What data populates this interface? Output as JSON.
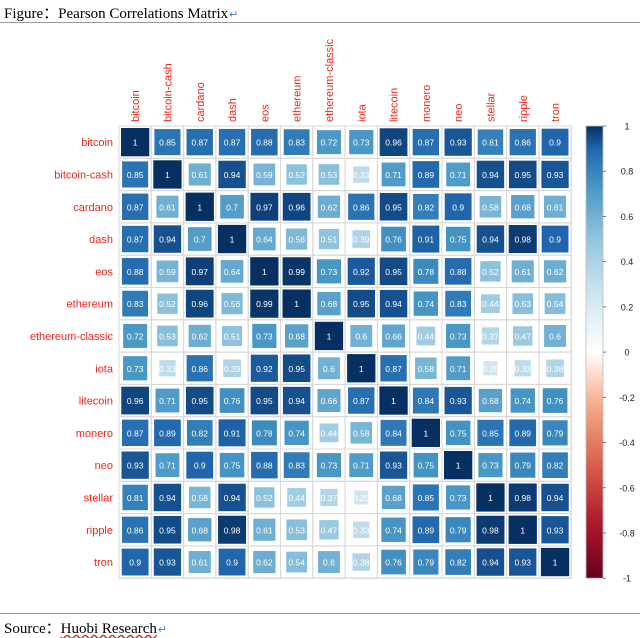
{
  "caption": {
    "figure_label": "Figure：",
    "figure_title": "Pearson Correlations Matrix",
    "source_label": "Source：",
    "source_text": "Huobi Research",
    "return_mark": "↵"
  },
  "colors": {
    "positive_strong": "#08306b",
    "neutral": "#ffffff",
    "negative_strong": "#67001f",
    "label_red": "#e8281d",
    "grid_line": "#d8d8d8"
  },
  "chart_data": {
    "type": "heatmap",
    "title": "",
    "variables": [
      "bitcoin",
      "bitcoin-cash",
      "cardano",
      "dash",
      "eos",
      "ethereum",
      "ethereum-classic",
      "iota",
      "litecoin",
      "monero",
      "neo",
      "stellar",
      "ripple",
      "tron"
    ],
    "matrix": [
      [
        1,
        0.85,
        0.87,
        0.87,
        0.88,
        0.83,
        0.72,
        0.73,
        0.96,
        0.87,
        0.93,
        0.81,
        0.86,
        0.9
      ],
      [
        0.85,
        1,
        0.61,
        0.94,
        0.59,
        0.52,
        0.53,
        0.33,
        0.71,
        0.89,
        0.71,
        0.94,
        0.95,
        0.93
      ],
      [
        0.87,
        0.61,
        1,
        0.7,
        0.97,
        0.96,
        0.62,
        0.86,
        0.95,
        0.82,
        0.9,
        0.58,
        0.68,
        0.61
      ],
      [
        0.87,
        0.94,
        0.7,
        1,
        0.64,
        0.56,
        0.51,
        0.39,
        0.76,
        0.91,
        0.75,
        0.94,
        0.98,
        0.9
      ],
      [
        0.88,
        0.59,
        0.97,
        0.64,
        1,
        0.99,
        0.73,
        0.92,
        0.95,
        0.78,
        0.88,
        0.52,
        0.61,
        0.62
      ],
      [
        0.83,
        0.52,
        0.96,
        0.56,
        0.99,
        1,
        0.68,
        0.95,
        0.94,
        0.74,
        0.83,
        0.44,
        0.53,
        0.54
      ],
      [
        0.72,
        0.53,
        0.62,
        0.51,
        0.73,
        0.68,
        1,
        0.6,
        0.66,
        0.44,
        0.73,
        0.37,
        0.47,
        0.6
      ],
      [
        0.73,
        0.33,
        0.86,
        0.39,
        0.92,
        0.95,
        0.6,
        1,
        0.87,
        0.58,
        0.71,
        0.25,
        0.33,
        0.38
      ],
      [
        0.96,
        0.71,
        0.95,
        0.76,
        0.95,
        0.94,
        0.66,
        0.87,
        1,
        0.84,
        0.93,
        0.68,
        0.74,
        0.76
      ],
      [
        0.87,
        0.89,
        0.82,
        0.91,
        0.78,
        0.74,
        0.44,
        0.58,
        0.84,
        1,
        0.75,
        0.85,
        0.89,
        0.79
      ],
      [
        0.93,
        0.71,
        0.9,
        0.75,
        0.88,
        0.83,
        0.73,
        0.71,
        0.93,
        0.75,
        1,
        0.73,
        0.79,
        0.82
      ],
      [
        0.81,
        0.94,
        0.58,
        0.94,
        0.52,
        0.44,
        0.37,
        0.25,
        0.68,
        0.85,
        0.73,
        1,
        0.98,
        0.94
      ],
      [
        0.86,
        0.95,
        0.68,
        0.98,
        0.61,
        0.53,
        0.47,
        0.33,
        0.74,
        0.89,
        0.79,
        0.98,
        1,
        0.93
      ],
      [
        0.9,
        0.93,
        0.61,
        0.9,
        0.62,
        0.54,
        0.6,
        0.38,
        0.76,
        0.79,
        0.82,
        0.94,
        0.93,
        1
      ]
    ],
    "colorbar": {
      "range": [
        -1,
        1
      ],
      "tick_values": [
        1,
        0.8,
        0.6,
        0.4,
        0.2,
        0,
        -0.2,
        -0.4,
        -0.6,
        -0.8,
        -1
      ],
      "tick_labels": [
        "1",
        "0.8",
        "0.6",
        "0.4",
        "0.2",
        "0",
        "-0.2",
        "-0.4",
        "-0.6",
        "-0.8",
        "-1"
      ]
    },
    "grid": true,
    "legend_position": "right"
  }
}
